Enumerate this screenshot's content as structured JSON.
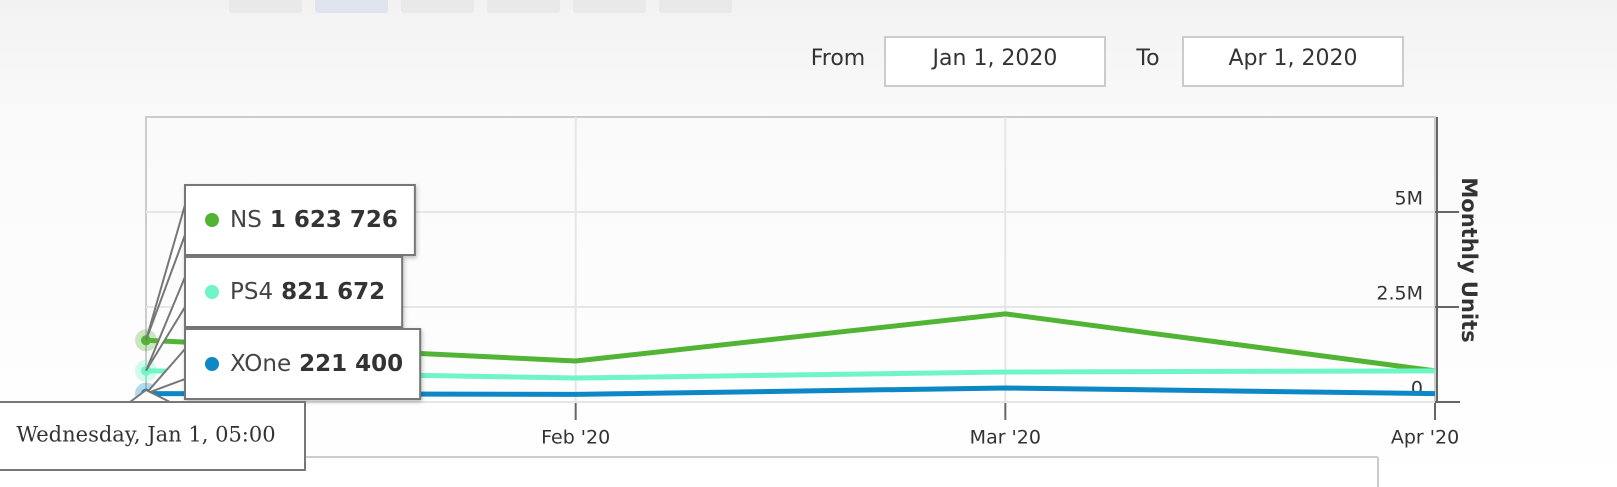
{
  "controls": {
    "from_label": "From",
    "from_value": "Jan 1, 2020",
    "to_label": "To",
    "to_value": "Apr 1, 2020"
  },
  "chart_data": {
    "type": "line",
    "y_axis_title": "Monthly Units",
    "categories": [
      null,
      "Feb '20",
      "Mar '20",
      "Apr '20"
    ],
    "series": [
      {
        "name": "NS",
        "color": "#52b435",
        "values": [
          1623726,
          1080000,
          2320000,
          820000
        ]
      },
      {
        "name": "PS4",
        "color": "#6ff5c6",
        "values": [
          821672,
          630000,
          790000,
          820000
        ]
      },
      {
        "name": "XOne",
        "color": "#0d87c5",
        "values": [
          221400,
          200000,
          370000,
          220000
        ]
      }
    ],
    "ylim": [
      0,
      7500000
    ],
    "yticks": [
      {
        "value": 0,
        "label": "0"
      },
      {
        "value": 2500000,
        "label": "2.5M"
      },
      {
        "value": 5000000,
        "label": "5M"
      }
    ],
    "grid": true,
    "tooltip": {
      "header": "Wednesday, Jan 1, 05:00",
      "point_index": 0,
      "value_labels": [
        "1 623 726",
        "821 672",
        "221 400"
      ]
    }
  }
}
